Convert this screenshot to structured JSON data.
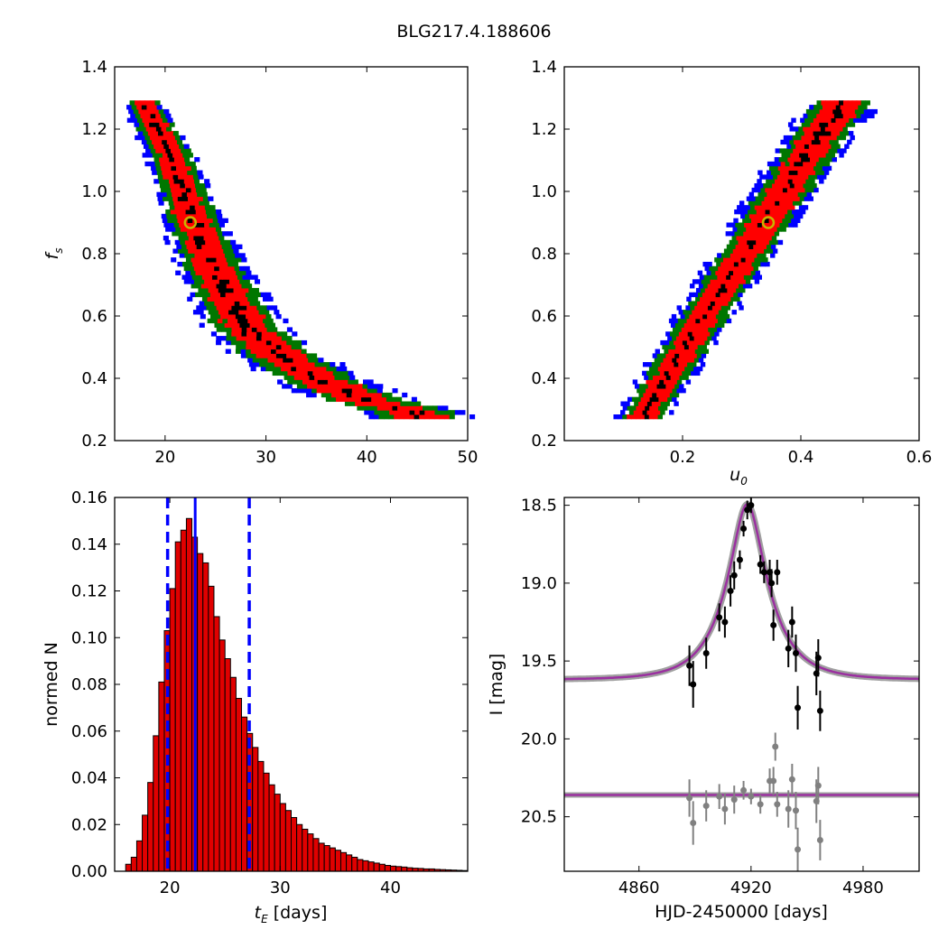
{
  "figure_title": "BLG217.4.188606",
  "colors": {
    "blue": "#0000ff",
    "green": "#007700",
    "red": "#ff0000",
    "black": "#000000",
    "marker_edge": "#c8b400",
    "model": "#9b30a0",
    "model_band": "#888888",
    "residual": "#808080",
    "hist_fill": "#e00000"
  },
  "chart_data": [
    {
      "type": "heatmap",
      "id": "fs_vs_tE",
      "xlabel": "",
      "ylabel": "f_s",
      "xlim": [
        15,
        50
      ],
      "ylim": [
        0.2,
        1.4
      ],
      "xticks": [
        20,
        30,
        40,
        50
      ],
      "yticks": [
        0.2,
        0.4,
        0.6,
        0.8,
        1.0,
        1.2,
        1.4
      ],
      "confidence_bands": [
        "blue",
        "green",
        "red",
        "black"
      ],
      "ridge": [
        [
          17.5,
          1.28
        ],
        [
          20.5,
          1.1
        ],
        [
          22.5,
          0.9
        ],
        [
          25,
          0.72
        ],
        [
          28,
          0.55
        ],
        [
          31,
          0.47
        ],
        [
          35,
          0.39
        ],
        [
          40,
          0.32
        ],
        [
          45,
          0.28
        ]
      ],
      "best_fit": {
        "x": 22.5,
        "y": 0.9
      }
    },
    {
      "type": "heatmap",
      "id": "fs_vs_u0",
      "xlabel": "u_0",
      "ylabel": "",
      "xlim": [
        0.0,
        0.6
      ],
      "ylim": [
        0.2,
        1.4
      ],
      "xticks": [
        0.2,
        0.4,
        0.6
      ],
      "yticks": [
        0.2,
        0.4,
        0.6,
        0.8,
        1.0,
        1.2,
        1.4
      ],
      "confidence_bands": [
        "blue",
        "green",
        "red",
        "black"
      ],
      "ridge": [
        [
          0.13,
          0.27
        ],
        [
          0.17,
          0.4
        ],
        [
          0.22,
          0.55
        ],
        [
          0.27,
          0.7
        ],
        [
          0.32,
          0.85
        ],
        [
          0.37,
          1.0
        ],
        [
          0.42,
          1.15
        ],
        [
          0.47,
          1.28
        ]
      ],
      "best_fit": {
        "x": 0.345,
        "y": 0.9
      }
    },
    {
      "type": "bar",
      "id": "tE_histogram",
      "xlabel": " [days]",
      "ylabel": "normed N",
      "xlim": [
        15,
        47
      ],
      "ylim": [
        0.0,
        0.16
      ],
      "xticks": [
        20,
        30,
        40
      ],
      "yticks": [
        0.0,
        0.02,
        0.04,
        0.06,
        0.08,
        0.1,
        0.12,
        0.14,
        0.16
      ],
      "bin_width": 0.5,
      "bin_start": 16,
      "values": [
        0.003,
        0.006,
        0.013,
        0.024,
        0.038,
        0.058,
        0.081,
        0.103,
        0.121,
        0.141,
        0.146,
        0.151,
        0.143,
        0.136,
        0.132,
        0.122,
        0.109,
        0.099,
        0.091,
        0.083,
        0.074,
        0.066,
        0.059,
        0.053,
        0.047,
        0.042,
        0.037,
        0.033,
        0.029,
        0.026,
        0.023,
        0.02,
        0.018,
        0.016,
        0.014,
        0.012,
        0.011,
        0.01,
        0.009,
        0.008,
        0.007,
        0.006,
        0.005,
        0.0045,
        0.004,
        0.0035,
        0.003,
        0.0025,
        0.0022,
        0.002,
        0.0018,
        0.0015,
        0.0013,
        0.0012,
        0.001,
        0.001,
        0.0008,
        0.0007,
        0.0006,
        0.0005,
        0.0004,
        0.0003
      ],
      "median_line": 22.3,
      "interval_lines": [
        19.8,
        27.2
      ]
    },
    {
      "type": "scatter",
      "id": "lightcurve",
      "xlabel": "HJD-2450000 [days]",
      "ylabel": "I [mag]",
      "xlim": [
        4820,
        5010
      ],
      "ylim": [
        20.85,
        18.45
      ],
      "xticks": [
        4860,
        4920,
        4980
      ],
      "yticks": [
        18.5,
        19.0,
        19.5,
        20.0,
        20.5
      ],
      "model": {
        "t0": 4918,
        "tE": 22.3,
        "u0": 0.345,
        "fs": 0.9,
        "baseline": 19.62
      },
      "residual_baseline": 20.36,
      "data": [
        {
          "x": 4887,
          "y": 19.53,
          "err": 0.13
        },
        {
          "x": 4889,
          "y": 19.65,
          "err": 0.15
        },
        {
          "x": 4896,
          "y": 19.45,
          "err": 0.1
        },
        {
          "x": 4903,
          "y": 19.22,
          "err": 0.09
        },
        {
          "x": 4906,
          "y": 19.25,
          "err": 0.1
        },
        {
          "x": 4909,
          "y": 19.05,
          "err": 0.1
        },
        {
          "x": 4911,
          "y": 18.95,
          "err": 0.09
        },
        {
          "x": 4914,
          "y": 18.85,
          "err": 0.06
        },
        {
          "x": 4916,
          "y": 18.65,
          "err": 0.05
        },
        {
          "x": 4918,
          "y": 18.53,
          "err": 0.06
        },
        {
          "x": 4920,
          "y": 18.5,
          "err": 0.05
        },
        {
          "x": 4925,
          "y": 18.88,
          "err": 0.06
        },
        {
          "x": 4927,
          "y": 18.93,
          "err": 0.07
        },
        {
          "x": 4930,
          "y": 18.93,
          "err": 0.08
        },
        {
          "x": 4931,
          "y": 19.0,
          "err": 0.09
        },
        {
          "x": 4932,
          "y": 19.27,
          "err": 0.1
        },
        {
          "x": 4934,
          "y": 18.93,
          "err": 0.08
        },
        {
          "x": 4940,
          "y": 19.42,
          "err": 0.12
        },
        {
          "x": 4942,
          "y": 19.25,
          "err": 0.1
        },
        {
          "x": 4944,
          "y": 19.45,
          "err": 0.12
        },
        {
          "x": 4945,
          "y": 19.8,
          "err": 0.14
        },
        {
          "x": 4955,
          "y": 19.58,
          "err": 0.14
        },
        {
          "x": 4956,
          "y": 19.48,
          "err": 0.12
        },
        {
          "x": 4957,
          "y": 19.82,
          "err": 0.13
        }
      ],
      "residuals": [
        {
          "x": 4887,
          "y": 20.38,
          "err": 0.12
        },
        {
          "x": 4889,
          "y": 20.54,
          "err": 0.14
        },
        {
          "x": 4896,
          "y": 20.43,
          "err": 0.1
        },
        {
          "x": 4903,
          "y": 20.37,
          "err": 0.08
        },
        {
          "x": 4906,
          "y": 20.45,
          "err": 0.1
        },
        {
          "x": 4911,
          "y": 20.39,
          "err": 0.09
        },
        {
          "x": 4916,
          "y": 20.33,
          "err": 0.06
        },
        {
          "x": 4920,
          "y": 20.37,
          "err": 0.05
        },
        {
          "x": 4925,
          "y": 20.42,
          "err": 0.06
        },
        {
          "x": 4930,
          "y": 20.27,
          "err": 0.08
        },
        {
          "x": 4932,
          "y": 20.27,
          "err": 0.09
        },
        {
          "x": 4933,
          "y": 20.05,
          "err": 0.09
        },
        {
          "x": 4934,
          "y": 20.42,
          "err": 0.08
        },
        {
          "x": 4940,
          "y": 20.45,
          "err": 0.12
        },
        {
          "x": 4942,
          "y": 20.26,
          "err": 0.1
        },
        {
          "x": 4944,
          "y": 20.46,
          "err": 0.12
        },
        {
          "x": 4945,
          "y": 20.71,
          "err": 0.14
        },
        {
          "x": 4955,
          "y": 20.4,
          "err": 0.14
        },
        {
          "x": 4956,
          "y": 20.3,
          "err": 0.12
        },
        {
          "x": 4957,
          "y": 20.65,
          "err": 0.13
        }
      ]
    }
  ]
}
